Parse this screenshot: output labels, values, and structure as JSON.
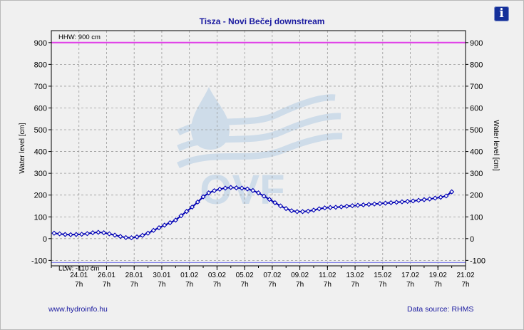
{
  "header": {
    "title": "Tisza - Novi Bečej downstream",
    "info_icon": "info-icon",
    "info_glyph": "i"
  },
  "footer": {
    "left": "www.hydroinfo.hu",
    "right": "Data source: RHMS"
  },
  "colors": {
    "line": "#0000b4",
    "hhw": "#e040e8",
    "llw": "#7a7ae8",
    "text": "#1a1aa0"
  },
  "chart_data": {
    "type": "line",
    "title": "Tisza - Novi Bečej downstream",
    "ylabel": "Water level [cm]",
    "ylabel_right": "Water level [cm]",
    "ylim": [
      -125,
      955
    ],
    "y_ticks": [
      -100,
      0,
      100,
      200,
      300,
      400,
      500,
      600,
      700,
      800,
      900
    ],
    "x_range": [
      -1.0,
      29.0
    ],
    "x_ticks": [
      {
        "day": 1,
        "date": "24.01",
        "hour": "7h"
      },
      {
        "day": 3,
        "date": "26.01",
        "hour": "7h"
      },
      {
        "day": 5,
        "date": "28.01",
        "hour": "7h"
      },
      {
        "day": 7,
        "date": "30.01",
        "hour": "7h"
      },
      {
        "day": 9,
        "date": "01.02",
        "hour": "7h"
      },
      {
        "day": 11,
        "date": "03.02",
        "hour": "7h"
      },
      {
        "day": 13,
        "date": "05.02",
        "hour": "7h"
      },
      {
        "day": 15,
        "date": "07.02",
        "hour": "7h"
      },
      {
        "day": 17,
        "date": "09.02",
        "hour": "7h"
      },
      {
        "day": 19,
        "date": "11.02",
        "hour": "7h"
      },
      {
        "day": 21,
        "date": "13.02",
        "hour": "7h"
      },
      {
        "day": 23,
        "date": "15.02",
        "hour": "7h"
      },
      {
        "day": 25,
        "date": "17.02",
        "hour": "7h"
      },
      {
        "day": 27,
        "date": "19.02",
        "hour": "7h"
      },
      {
        "day": 29,
        "date": "21.02",
        "hour": "7h"
      }
    ],
    "reference_lines": [
      {
        "label": "HHW: 900 cm",
        "value": 900
      },
      {
        "label": "LLW: -110 cm",
        "value": -110
      }
    ],
    "grid": true,
    "series": [
      {
        "x": [
          -0.8,
          -0.4,
          0.0,
          0.4,
          0.8,
          1.2,
          1.6,
          2.0,
          2.4,
          2.8,
          3.2,
          3.6,
          4.0,
          4.4,
          4.8,
          5.2,
          5.6,
          6.0,
          6.4,
          6.8,
          7.2,
          7.6,
          8.0,
          8.4,
          8.8,
          9.2,
          9.6,
          10.0,
          10.4,
          10.8,
          11.2,
          11.6,
          12.0,
          12.4,
          12.8,
          13.2,
          13.6,
          14.0,
          14.4,
          14.8,
          15.2,
          15.6,
          16.0,
          16.4,
          16.8,
          17.2,
          17.6,
          18.0,
          18.4,
          18.8,
          19.2,
          19.6,
          20.0,
          20.4,
          20.8,
          21.2,
          21.6,
          22.0,
          22.4,
          22.8,
          23.2,
          23.6,
          24.0,
          24.4,
          24.8,
          25.2,
          25.6,
          26.0,
          26.4,
          26.8,
          27.2,
          27.6,
          28.0
        ],
        "y": [
          25,
          22,
          19,
          18,
          19,
          20,
          23,
          27,
          29,
          27,
          22,
          16,
          10,
          5,
          4,
          8,
          15,
          25,
          38,
          50,
          62,
          73,
          85,
          105,
          125,
          145,
          168,
          192,
          210,
          220,
          227,
          232,
          235,
          233,
          232,
          228,
          221,
          210,
          195,
          180,
          165,
          150,
          138,
          128,
          124,
          124,
          126,
          131,
          137,
          141,
          143,
          144,
          146,
          149,
          151,
          153,
          155,
          157,
          159,
          161,
          163,
          165,
          167,
          169,
          171,
          173,
          176,
          179,
          182,
          186,
          190,
          196,
          215
        ]
      }
    ]
  }
}
